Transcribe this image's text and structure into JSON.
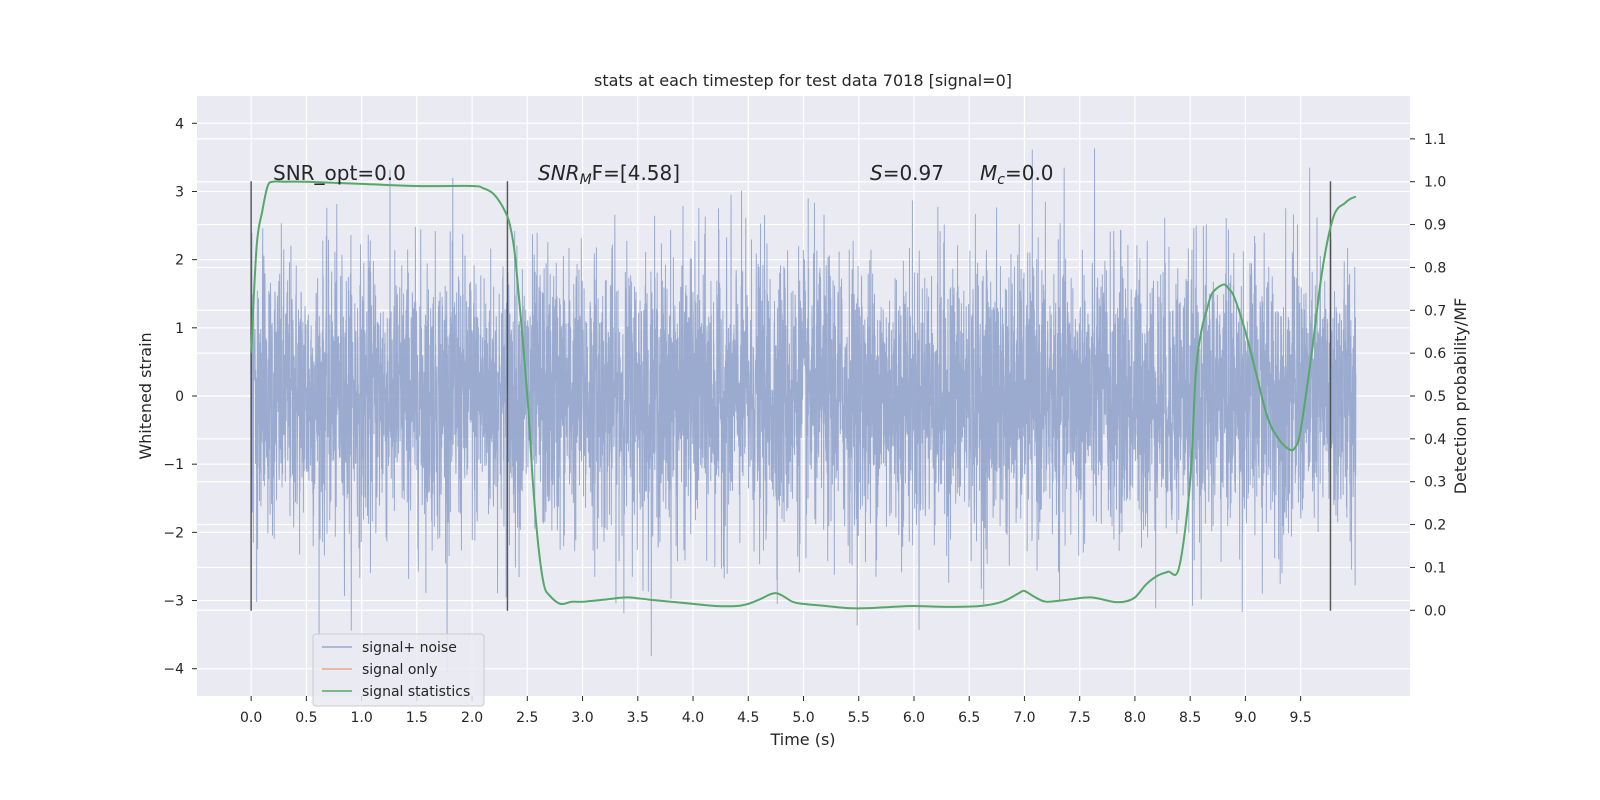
{
  "chart_data": {
    "type": "line",
    "title": "stats at each timestep for test data 7018 [signal=0]",
    "xlabel": "Time (s)",
    "ylabel_left": "Whitened strain",
    "ylabel_right": "Detection probability/MF",
    "xlim": [
      -0.49,
      10.49
    ],
    "ylim_left": [
      -4.4,
      4.4
    ],
    "ylim_right": [
      -0.2,
      1.2
    ],
    "x_ticks": [
      "0.0",
      "0.5",
      "1.0",
      "1.5",
      "2.0",
      "2.5",
      "3.0",
      "3.5",
      "4.0",
      "4.5",
      "5.0",
      "5.5",
      "6.0",
      "6.5",
      "7.0",
      "7.5",
      "8.0",
      "8.5",
      "9.0",
      "9.5"
    ],
    "y_left_ticks": [
      "4",
      "3",
      "2",
      "1",
      "0",
      "−1",
      "−2",
      "−3",
      "−4"
    ],
    "y_right_ticks": [
      "1.1",
      "1.0",
      "0.9",
      "0.8",
      "0.7",
      "0.6",
      "0.5",
      "0.4",
      "0.3",
      "0.2",
      "0.1",
      "0.0"
    ],
    "grid": true,
    "legend_position": "lower-left",
    "annotations": {
      "snr_opt": "SNR_opt=0.0",
      "snr_mf_label": "SNR",
      "snr_mf_sub": "M",
      "snr_mf_tail": "F=[4.58]",
      "s_label": "S",
      "s_value": "=0.97",
      "mc_label": "M",
      "mc_sub": "c",
      "mc_value": "=0.0"
    },
    "vlines": [
      0.0,
      2.32,
      9.77
    ],
    "series": [
      {
        "name": "signal+ noise",
        "color": "#97a8cd",
        "t_range": [
          0.0,
          10.0
        ],
        "spread": 1.3,
        "max": 4.05,
        "min": -4.05
      },
      {
        "name": "signal only",
        "color": "#e8a88c",
        "values": []
      },
      {
        "name": "signal statistics",
        "color": "#55a868",
        "x": [
          0.0,
          0.05,
          0.1,
          0.15,
          0.2,
          0.3,
          0.5,
          1.0,
          1.5,
          2.0,
          2.1,
          2.2,
          2.3,
          2.35,
          2.4,
          2.5,
          2.55,
          2.6,
          2.65,
          2.7,
          2.8,
          2.9,
          3.0,
          3.2,
          3.4,
          3.6,
          3.8,
          4.0,
          4.2,
          4.4,
          4.5,
          4.6,
          4.75,
          4.9,
          5.0,
          5.2,
          5.4,
          5.6,
          5.8,
          6.0,
          6.3,
          6.6,
          6.8,
          6.95,
          7.0,
          7.1,
          7.2,
          7.4,
          7.6,
          7.8,
          7.9,
          8.0,
          8.1,
          8.2,
          8.3,
          8.4,
          8.5,
          8.55,
          8.6,
          8.65,
          8.7,
          8.8,
          8.85,
          8.9,
          9.0,
          9.1,
          9.2,
          9.3,
          9.4,
          9.45,
          9.5,
          9.6,
          9.7,
          9.8,
          9.9,
          9.95,
          10.0
        ],
        "values": [
          0.6,
          0.85,
          0.93,
          0.99,
          1.0,
          1.0,
          1.0,
          0.995,
          0.99,
          0.99,
          0.985,
          0.97,
          0.93,
          0.89,
          0.8,
          0.5,
          0.3,
          0.15,
          0.06,
          0.035,
          0.015,
          0.02,
          0.02,
          0.025,
          0.03,
          0.025,
          0.02,
          0.015,
          0.01,
          0.01,
          0.015,
          0.025,
          0.04,
          0.02,
          0.015,
          0.01,
          0.005,
          0.005,
          0.008,
          0.01,
          0.008,
          0.01,
          0.02,
          0.04,
          0.045,
          0.03,
          0.02,
          0.025,
          0.03,
          0.02,
          0.02,
          0.03,
          0.06,
          0.08,
          0.09,
          0.1,
          0.3,
          0.55,
          0.65,
          0.7,
          0.74,
          0.76,
          0.75,
          0.73,
          0.65,
          0.55,
          0.45,
          0.4,
          0.375,
          0.38,
          0.42,
          0.6,
          0.8,
          0.92,
          0.95,
          0.96,
          0.965
        ]
      }
    ]
  }
}
